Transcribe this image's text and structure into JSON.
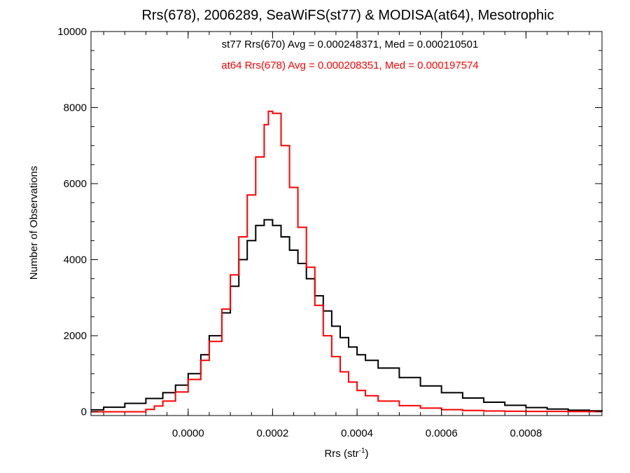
{
  "chart_data": {
    "type": "line",
    "title": "Rrs(678), 2006289, SeaWiFS(st77) & MODISA(at64), Mesotrophic",
    "xlabel": "Rrs (str",
    "xlabel_sup": "-1",
    "xlabel_end": ")",
    "ylabel": "Number of Observations",
    "xlim": [
      -0.00023,
      0.00098
    ],
    "ylim": [
      -100,
      10000
    ],
    "x_ticks": [
      {
        "value": 0.0,
        "label": "0.0000"
      },
      {
        "value": 0.0002,
        "label": "0.0002"
      },
      {
        "value": 0.0004,
        "label": "0.0004"
      },
      {
        "value": 0.0006,
        "label": "0.0006"
      },
      {
        "value": 0.0008,
        "label": "0.0008"
      }
    ],
    "y_ticks": [
      {
        "value": 0,
        "label": "0"
      },
      {
        "value": 2000,
        "label": "2000"
      },
      {
        "value": 4000,
        "label": "4000"
      },
      {
        "value": 6000,
        "label": "6000"
      },
      {
        "value": 8000,
        "label": "8000"
      },
      {
        "value": 10000,
        "label": "10000"
      }
    ],
    "annotations": [
      {
        "text": "st77 Rrs(670) Avg = 0.000248371, Med = 0.000210501",
        "color": "#000000"
      },
      {
        "text": "at64 Rrs(678) Avg = 0.000208351, Med = 0.000197574",
        "color": "#ff0000"
      }
    ],
    "series": [
      {
        "color": "#000000",
        "style": "step",
        "x": [
          -0.00023,
          -0.0002,
          -0.00015,
          -0.0001,
          -6e-05,
          -3e-05,
          0.0,
          3e-05,
          5e-05,
          8e-05,
          0.0001,
          0.00012,
          0.00014,
          0.00016,
          0.00018,
          0.0002,
          0.00022,
          0.00024,
          0.00026,
          0.00028,
          0.0003,
          0.00032,
          0.00034,
          0.00036,
          0.00038,
          0.0004,
          0.00042,
          0.00045,
          0.0005,
          0.00055,
          0.0006,
          0.00065,
          0.0007,
          0.00075,
          0.0008,
          0.00085,
          0.0009,
          0.00095,
          0.00098
        ],
        "y": [
          50,
          120,
          220,
          350,
          500,
          700,
          1000,
          1500,
          2000,
          2600,
          3300,
          4000,
          4500,
          4900,
          5050,
          4900,
          4600,
          4250,
          3900,
          3500,
          3050,
          2650,
          2250,
          1950,
          1700,
          1500,
          1350,
          1150,
          900,
          680,
          500,
          360,
          250,
          170,
          110,
          70,
          40,
          25,
          15
        ]
      },
      {
        "color": "#ff0000",
        "style": "step",
        "x": [
          -0.00023,
          -0.00012,
          -0.0001,
          -8e-05,
          -6e-05,
          -3e-05,
          0.0,
          3e-05,
          5e-05,
          8e-05,
          0.0001,
          0.00012,
          0.00014,
          0.00016,
          0.00018,
          0.00019,
          0.0002,
          0.00022,
          0.00024,
          0.00026,
          0.00028,
          0.0003,
          0.00032,
          0.00034,
          0.00036,
          0.00038,
          0.0004,
          0.00042,
          0.00045,
          0.0005,
          0.00055,
          0.0006,
          0.00065,
          0.0007,
          0.00075,
          0.0008,
          0.0009,
          0.00098
        ],
        "y": [
          0,
          0,
          60,
          150,
          280,
          520,
          850,
          1350,
          1850,
          2700,
          3600,
          4600,
          5700,
          6700,
          7550,
          7900,
          7850,
          7000,
          5900,
          4850,
          3800,
          2800,
          2000,
          1450,
          1050,
          780,
          560,
          420,
          280,
          160,
          95,
          55,
          35,
          20,
          12,
          8,
          4,
          2
        ]
      }
    ]
  }
}
